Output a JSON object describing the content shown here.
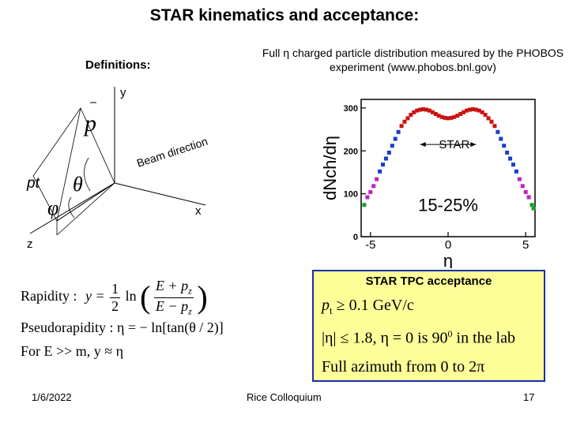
{
  "slide": {
    "title": "STAR kinematics and acceptance:",
    "definitions_label": "Definitions:",
    "caption": "Full η charged particle distribution measured by the PHOBOS experiment (www.phobos.bnl.gov)",
    "date": "1/6/2022",
    "footer_center": "Rice Colloquium",
    "page_number": "17"
  },
  "diagram": {
    "axis_y": "y",
    "axis_x": "x",
    "axis_z": "z",
    "beam_direction": "Beam direction",
    "momentum": "p",
    "transverse": "pt",
    "theta": "θ",
    "phi": "φ"
  },
  "equations": {
    "rapidity_label": "Rapidity :",
    "rapidity_lhs": "y =",
    "rapidity_num": "1",
    "rapidity_den": "2",
    "ln": "ln",
    "rap_top": "E + p",
    "rap_bot": "E − p",
    "z_sub": "z",
    "pseudo": "Pseudorapidity : η = − ln[tan(θ / 2)]",
    "limit": "For E >> m,  y ≈ η"
  },
  "tpc": {
    "title": "STAR TPC acceptance",
    "line1": "p",
    "line1_sub": "t",
    "line1_rest": " ≥ 0.1 GeV/c",
    "line2": "|η| ≤ 1.8,  η = 0 is 90",
    "line2_sup": "0",
    "line2_rest": " in the lab",
    "line3": "Full azimuth from 0 to 2π"
  },
  "chart_data": {
    "type": "scatter",
    "title": "",
    "xlabel": "η",
    "ylabel": "dNch/dη",
    "xlim": [
      -5.6,
      5.6
    ],
    "ylim": [
      0,
      320
    ],
    "x_ticks": [
      "-5",
      "0",
      "5"
    ],
    "y_ticks": [
      "0",
      "100",
      "200",
      "300"
    ],
    "annotations": [
      "STAR",
      "15-25%"
    ],
    "colors": {
      "red": "#cc1010",
      "blue": "#1a3ccc",
      "magenta": "#c020c0",
      "green": "#18a028",
      "axis": "#000000",
      "arrow": "#000000"
    },
    "series": [
      {
        "color": "red",
        "x": [
          -3.0,
          -2.8,
          -2.6,
          -2.4,
          -2.2,
          -2.0,
          -1.8,
          -1.6,
          -1.4,
          -1.2,
          -1.0,
          -0.8,
          -0.6,
          -0.4,
          -0.2,
          0.0,
          0.2,
          0.4,
          0.6,
          0.8,
          1.0,
          1.2,
          1.4,
          1.6,
          1.8,
          2.0,
          2.2,
          2.4,
          2.6,
          2.8,
          3.0
        ],
        "y": [
          258,
          268,
          276,
          284,
          290,
          294,
          296,
          297,
          296,
          294,
          290,
          286,
          282,
          279,
          277,
          276,
          277,
          279,
          282,
          286,
          290,
          294,
          296,
          297,
          296,
          294,
          290,
          284,
          276,
          268,
          258
        ]
      },
      {
        "color": "blue",
        "x": [
          -4.4,
          -4.2,
          -4.0,
          -3.8,
          -3.6,
          -3.4,
          -3.2,
          3.2,
          3.4,
          3.6,
          3.8,
          4.0,
          4.2,
          4.4
        ],
        "y": [
          152,
          168,
          182,
          196,
          212,
          228,
          244,
          244,
          228,
          212,
          196,
          182,
          168,
          152
        ]
      },
      {
        "color": "magenta",
        "x": [
          -5.2,
          -5.0,
          -4.8,
          -4.6,
          4.6,
          4.8,
          5.0,
          5.2
        ],
        "y": [
          92,
          104,
          118,
          134,
          134,
          118,
          104,
          92
        ]
      },
      {
        "color": "green",
        "x": [
          -5.4,
          5.4,
          5.5
        ],
        "y": [
          74,
          74,
          66
        ]
      }
    ],
    "star_range": [
      -1.8,
      1.8
    ]
  }
}
